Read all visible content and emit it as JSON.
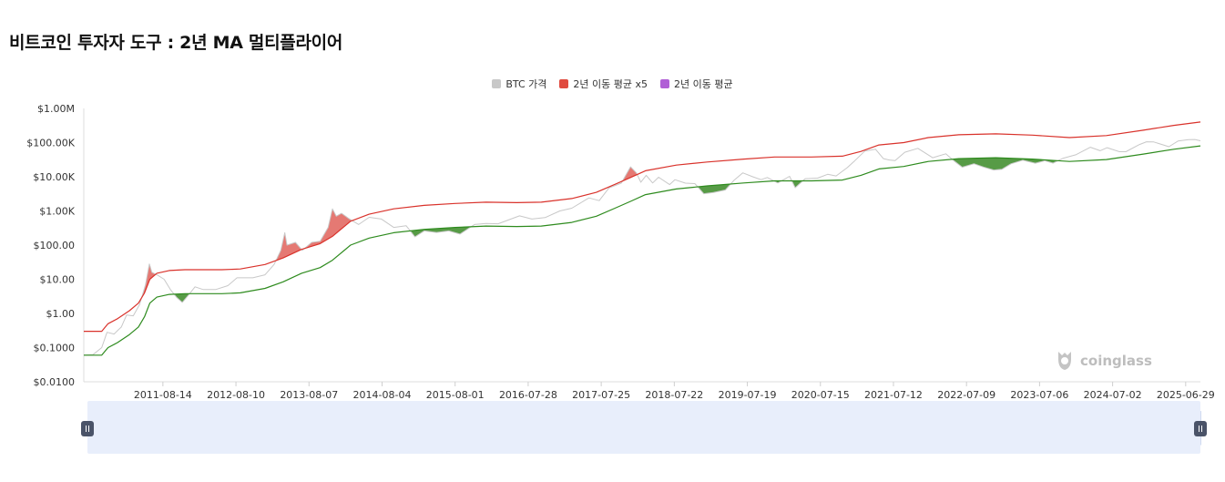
{
  "title": "비트코인 투자자 도구 : 2년 MA 멀티플라이어",
  "legend": [
    {
      "label": "BTC 가격",
      "color": "#c8c8c8"
    },
    {
      "label": "2년 이동 평균 x5",
      "color": "#e04b3f"
    },
    {
      "label": "2년 이동 평균",
      "color": "#b05fd6"
    }
  ],
  "watermark": "coinglass",
  "colors": {
    "price": "#c8c8c8",
    "ma_x5": "#d9322b",
    "ma": "#2e8b1e",
    "above_fill": "#e0625a",
    "below_fill": "#3a8a26",
    "grid": "#e6e6e6",
    "navigator_fill": "#d5e1f7",
    "navigator_line": "#9fb5e2"
  },
  "chart_data": {
    "type": "line",
    "title": "비트코인 투자자 도구 : 2년 MA 멀티플라이어",
    "y_scale": "log",
    "ylim": [
      0.01,
      1000000
    ],
    "y_ticks": [
      {
        "value": 1000000,
        "label": "$1.00M"
      },
      {
        "value": 100000,
        "label": "$100.00K"
      },
      {
        "value": 10000,
        "label": "$10.00K"
      },
      {
        "value": 1000,
        "label": "$1.00K"
      },
      {
        "value": 100,
        "label": "$100.00"
      },
      {
        "value": 10,
        "label": "$10.00"
      },
      {
        "value": 1,
        "label": "$1.00"
      },
      {
        "value": 0.1,
        "label": "$0.1000"
      },
      {
        "value": 0.01,
        "label": "$0.0100"
      }
    ],
    "xlim": [
      "2010-07-18",
      "2025-09-10"
    ],
    "x_ticks": [
      "2011-08-14",
      "2012-08-10",
      "2013-08-07",
      "2014-08-04",
      "2015-08-01",
      "2016-07-28",
      "2017-07-25",
      "2018-07-22",
      "2019-07-19",
      "2020-07-15",
      "2021-07-12",
      "2022-07-09",
      "2023-07-06",
      "2024-07-02",
      "2025-06-29"
    ],
    "series": [
      {
        "name": "BTC 가격",
        "points": [
          [
            "2010-07-18",
            0.06
          ],
          [
            "2010-09-01",
            0.062
          ],
          [
            "2010-10-15",
            0.1
          ],
          [
            "2010-11-10",
            0.28
          ],
          [
            "2010-12-15",
            0.25
          ],
          [
            "2011-01-20",
            0.4
          ],
          [
            "2011-02-15",
            0.9
          ],
          [
            "2011-03-20",
            0.85
          ],
          [
            "2011-04-20",
            1.8
          ],
          [
            "2011-05-20",
            7
          ],
          [
            "2011-06-08",
            28
          ],
          [
            "2011-06-20",
            16
          ],
          [
            "2011-07-20",
            13
          ],
          [
            "2011-08-20",
            10
          ],
          [
            "2011-09-20",
            5
          ],
          [
            "2011-10-20",
            3
          ],
          [
            "2011-11-18",
            2.1
          ],
          [
            "2011-12-20",
            3.5
          ],
          [
            "2012-01-20",
            6
          ],
          [
            "2012-03-01",
            5
          ],
          [
            "2012-05-01",
            5
          ],
          [
            "2012-07-01",
            6.5
          ],
          [
            "2012-08-15",
            11
          ],
          [
            "2012-09-15",
            11
          ],
          [
            "2012-11-01",
            11
          ],
          [
            "2013-01-01",
            13.5
          ],
          [
            "2013-02-15",
            27
          ],
          [
            "2013-03-20",
            70
          ],
          [
            "2013-04-09",
            230
          ],
          [
            "2013-04-20",
            100
          ],
          [
            "2013-06-01",
            120
          ],
          [
            "2013-07-05",
            70
          ],
          [
            "2013-08-20",
            120
          ],
          [
            "2013-10-01",
            130
          ],
          [
            "2013-11-10",
            330
          ],
          [
            "2013-12-01",
            1150
          ],
          [
            "2013-12-20",
            700
          ],
          [
            "2014-01-15",
            850
          ],
          [
            "2014-02-20",
            600
          ],
          [
            "2014-04-10",
            400
          ],
          [
            "2014-06-01",
            650
          ],
          [
            "2014-08-01",
            580
          ],
          [
            "2014-10-01",
            330
          ],
          [
            "2014-12-01",
            370
          ],
          [
            "2015-01-14",
            175
          ],
          [
            "2015-03-01",
            260
          ],
          [
            "2015-05-01",
            235
          ],
          [
            "2015-07-01",
            260
          ],
          [
            "2015-08-25",
            210
          ],
          [
            "2015-11-05",
            400
          ],
          [
            "2016-01-01",
            430
          ],
          [
            "2016-03-01",
            420
          ],
          [
            "2016-06-15",
            720
          ],
          [
            "2016-08-15",
            580
          ],
          [
            "2016-10-20",
            640
          ],
          [
            "2017-01-01",
            1000
          ],
          [
            "2017-03-01",
            1200
          ],
          [
            "2017-05-25",
            2400
          ],
          [
            "2017-07-15",
            2000
          ],
          [
            "2017-09-01",
            4700
          ],
          [
            "2017-11-01",
            6500
          ],
          [
            "2017-12-17",
            19500
          ],
          [
            "2018-01-15",
            13000
          ],
          [
            "2018-02-06",
            6900
          ],
          [
            "2018-03-05",
            11000
          ],
          [
            "2018-04-06",
            6600
          ],
          [
            "2018-05-05",
            9700
          ],
          [
            "2018-06-29",
            5900
          ],
          [
            "2018-07-25",
            8200
          ],
          [
            "2018-09-15",
            6500
          ],
          [
            "2018-11-01",
            6300
          ],
          [
            "2018-12-15",
            3200
          ],
          [
            "2019-02-01",
            3450
          ],
          [
            "2019-04-01",
            4100
          ],
          [
            "2019-05-15",
            8000
          ],
          [
            "2019-06-26",
            13000
          ],
          [
            "2019-08-15",
            10000
          ],
          [
            "2019-09-25",
            8200
          ],
          [
            "2019-10-26",
            9500
          ],
          [
            "2019-12-17",
            6600
          ],
          [
            "2020-02-13",
            10300
          ],
          [
            "2020-03-12",
            4800
          ],
          [
            "2020-05-01",
            8800
          ],
          [
            "2020-07-01",
            9100
          ],
          [
            "2020-08-20",
            11800
          ],
          [
            "2020-10-01",
            10600
          ],
          [
            "2020-11-25",
            18500
          ],
          [
            "2020-12-31",
            29000
          ],
          [
            "2021-02-21",
            57000
          ],
          [
            "2021-04-14",
            64000
          ],
          [
            "2021-05-23",
            34000
          ],
          [
            "2021-06-22",
            31000
          ],
          [
            "2021-07-20",
            29800
          ],
          [
            "2021-09-06",
            52000
          ],
          [
            "2021-11-10",
            68000
          ],
          [
            "2022-01-22",
            36000
          ],
          [
            "2022-03-28",
            47000
          ],
          [
            "2022-05-12",
            28000
          ],
          [
            "2022-06-18",
            19000
          ],
          [
            "2022-08-15",
            24000
          ],
          [
            "2022-10-01",
            19300
          ],
          [
            "2022-11-21",
            15800
          ],
          [
            "2023-01-01",
            16600
          ],
          [
            "2023-02-15",
            24000
          ],
          [
            "2023-04-14",
            30500
          ],
          [
            "2023-06-15",
            25000
          ],
          [
            "2023-08-01",
            29500
          ],
          [
            "2023-09-11",
            25100
          ],
          [
            "2023-11-01",
            35000
          ],
          [
            "2024-01-01",
            44000
          ],
          [
            "2024-03-14",
            73000
          ],
          [
            "2024-05-01",
            58000
          ],
          [
            "2024-06-05",
            71000
          ],
          [
            "2024-08-05",
            54000
          ],
          [
            "2024-09-06",
            54000
          ],
          [
            "2024-11-12",
            88000
          ],
          [
            "2024-12-17",
            106000
          ],
          [
            "2025-01-20",
            105000
          ],
          [
            "2025-04-07",
            76000
          ],
          [
            "2025-05-22",
            111000
          ],
          [
            "2025-07-14",
            122000
          ],
          [
            "2025-08-14",
            123000
          ],
          [
            "2025-09-10",
            113000
          ]
        ]
      },
      {
        "name": "2년 이동 평균 x5",
        "points": [
          [
            "2010-07-18",
            0.3
          ],
          [
            "2010-10-15",
            0.3
          ],
          [
            "2010-11-15",
            0.5
          ],
          [
            "2011-01-01",
            0.7
          ],
          [
            "2011-03-01",
            1.2
          ],
          [
            "2011-04-15",
            2
          ],
          [
            "2011-05-15",
            4
          ],
          [
            "2011-06-10",
            10
          ],
          [
            "2011-07-15",
            15
          ],
          [
            "2011-09-15",
            18
          ],
          [
            "2011-12-01",
            19
          ],
          [
            "2012-06-01",
            19
          ],
          [
            "2012-09-01",
            20
          ],
          [
            "2013-01-01",
            27
          ],
          [
            "2013-04-01",
            42
          ],
          [
            "2013-07-01",
            75
          ],
          [
            "2013-10-01",
            110
          ],
          [
            "2013-12-01",
            180
          ],
          [
            "2014-03-01",
            500
          ],
          [
            "2014-06-01",
            800
          ],
          [
            "2014-10-01",
            1150
          ],
          [
            "2015-03-01",
            1450
          ],
          [
            "2015-08-01",
            1650
          ],
          [
            "2016-01-01",
            1800
          ],
          [
            "2016-06-01",
            1750
          ],
          [
            "2016-10-01",
            1800
          ],
          [
            "2017-03-01",
            2300
          ],
          [
            "2017-07-01",
            3500
          ],
          [
            "2017-10-01",
            6000
          ],
          [
            "2017-12-17",
            9500
          ],
          [
            "2018-03-01",
            15000
          ],
          [
            "2018-08-01",
            22000
          ],
          [
            "2019-01-01",
            27000
          ],
          [
            "2019-07-01",
            33000
          ],
          [
            "2019-12-01",
            38000
          ],
          [
            "2020-06-01",
            38000
          ],
          [
            "2020-11-01",
            40000
          ],
          [
            "2021-02-01",
            55000
          ],
          [
            "2021-05-01",
            85000
          ],
          [
            "2021-09-01",
            100000
          ],
          [
            "2022-01-01",
            140000
          ],
          [
            "2022-06-01",
            170000
          ],
          [
            "2022-12-01",
            180000
          ],
          [
            "2023-06-01",
            165000
          ],
          [
            "2023-12-01",
            140000
          ],
          [
            "2024-06-01",
            160000
          ],
          [
            "2024-12-01",
            230000
          ],
          [
            "2025-05-01",
            320000
          ],
          [
            "2025-09-10",
            400000
          ]
        ]
      },
      {
        "name": "2년 이동 평균",
        "points": [
          [
            "2010-07-18",
            0.06
          ],
          [
            "2010-10-15",
            0.06
          ],
          [
            "2010-11-15",
            0.1
          ],
          [
            "2011-01-01",
            0.14
          ],
          [
            "2011-03-01",
            0.24
          ],
          [
            "2011-04-15",
            0.4
          ],
          [
            "2011-05-15",
            0.8
          ],
          [
            "2011-06-10",
            2
          ],
          [
            "2011-07-15",
            3
          ],
          [
            "2011-09-15",
            3.6
          ],
          [
            "2011-12-01",
            3.8
          ],
          [
            "2012-06-01",
            3.8
          ],
          [
            "2012-09-01",
            4
          ],
          [
            "2013-01-01",
            5.4
          ],
          [
            "2013-04-01",
            8.4
          ],
          [
            "2013-07-01",
            15
          ],
          [
            "2013-10-01",
            22
          ],
          [
            "2013-12-01",
            36
          ],
          [
            "2014-03-01",
            100
          ],
          [
            "2014-06-01",
            160
          ],
          [
            "2014-10-01",
            230
          ],
          [
            "2015-03-01",
            290
          ],
          [
            "2015-08-01",
            330
          ],
          [
            "2016-01-01",
            360
          ],
          [
            "2016-06-01",
            350
          ],
          [
            "2016-10-01",
            360
          ],
          [
            "2017-03-01",
            460
          ],
          [
            "2017-07-01",
            700
          ],
          [
            "2017-10-01",
            1200
          ],
          [
            "2017-12-17",
            1900
          ],
          [
            "2018-03-01",
            3000
          ],
          [
            "2018-08-01",
            4400
          ],
          [
            "2019-01-01",
            5400
          ],
          [
            "2019-07-01",
            6600
          ],
          [
            "2019-12-01",
            7600
          ],
          [
            "2020-06-01",
            7600
          ],
          [
            "2020-11-01",
            8000
          ],
          [
            "2021-02-01",
            11000
          ],
          [
            "2021-05-01",
            17000
          ],
          [
            "2021-09-01",
            20000
          ],
          [
            "2022-01-01",
            28000
          ],
          [
            "2022-06-01",
            34000
          ],
          [
            "2022-12-01",
            36000
          ],
          [
            "2023-06-01",
            33000
          ],
          [
            "2023-12-01",
            28000
          ],
          [
            "2024-06-01",
            32000
          ],
          [
            "2024-12-01",
            46000
          ],
          [
            "2025-05-01",
            64000
          ],
          [
            "2025-09-10",
            80000
          ]
        ]
      }
    ],
    "grid": false,
    "legend_position": "top-center"
  }
}
